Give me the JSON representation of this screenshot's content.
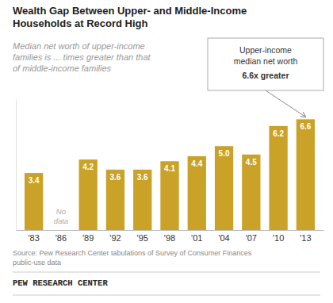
{
  "chart_data": {
    "type": "bar",
    "title": "Wealth Gap Between Upper- and Middle-Income\nHouseholds at Record High",
    "subtitle": "Median net worth of upper-income\nfamilies is ... times greater than that\nof middle-income families",
    "categories": [
      "'83",
      "'86",
      "'89",
      "'92",
      "'95",
      "'98",
      "'01",
      "'04",
      "'07",
      "'10",
      "'13"
    ],
    "values": [
      3.4,
      null,
      4.2,
      3.6,
      3.6,
      4.1,
      4.4,
      5.0,
      4.5,
      6.2,
      6.6
    ],
    "value_labels": [
      "3.4",
      null,
      "4.2",
      "3.6",
      "3.6",
      "4.1",
      "4.4",
      "5.0",
      "4.5",
      "6.2",
      "6.6"
    ],
    "data_labels": true,
    "color": "#C9A227",
    "ylim": [
      0,
      7.8
    ],
    "tick_labels": "x",
    "annotations": [
      {
        "text": "Upper-income\nmedian net worth\n6.6x greater",
        "x": "'13"
      },
      {
        "text": "No\ndata",
        "x": "'86"
      }
    ],
    "source": "Source: Pew Research Center tabulations of Survey of Consumer Finances\npublic-use data",
    "footer": "PEW RESEARCH CENTER"
  }
}
